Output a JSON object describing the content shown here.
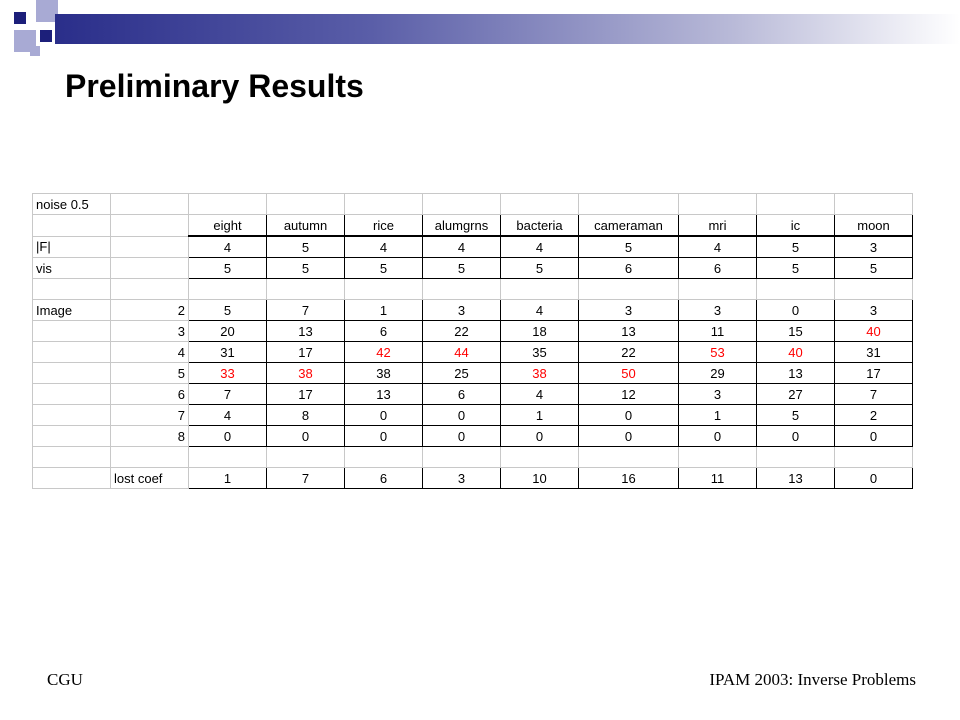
{
  "slide": {
    "title": "Preliminary Results",
    "footer_left": "CGU",
    "footer_right": "IPAM 2003: Inverse Problems"
  },
  "table": {
    "corner_label": "noise 0.5",
    "columns": [
      "eight",
      "autumn",
      "rice",
      "alumgrns",
      "bacteria",
      "cameraman",
      "mri",
      "ic",
      "moon"
    ],
    "rows": [
      {
        "label": "|F|",
        "sub": "",
        "values": [
          "4",
          "5",
          "4",
          "4",
          "4",
          "5",
          "4",
          "5",
          "3"
        ],
        "red": []
      },
      {
        "label": "vis",
        "sub": "",
        "values": [
          "5",
          "5",
          "5",
          "5",
          "5",
          "6",
          "6",
          "5",
          "5"
        ],
        "red": []
      },
      {
        "label": "Image",
        "sub": "2",
        "values": [
          "5",
          "7",
          "1",
          "3",
          "4",
          "3",
          "3",
          "0",
          "3"
        ],
        "red": []
      },
      {
        "label": "",
        "sub": "3",
        "values": [
          "20",
          "13",
          "6",
          "22",
          "18",
          "13",
          "11",
          "15",
          "40"
        ],
        "red": [
          8
        ]
      },
      {
        "label": "",
        "sub": "4",
        "values": [
          "31",
          "17",
          "42",
          "44",
          "35",
          "22",
          "53",
          "40",
          "31"
        ],
        "red": [
          2,
          3,
          6,
          7
        ]
      },
      {
        "label": "",
        "sub": "5",
        "values": [
          "33",
          "38",
          "38",
          "25",
          "38",
          "50",
          "29",
          "13",
          "17"
        ],
        "red": [
          0,
          1,
          4,
          5
        ]
      },
      {
        "label": "",
        "sub": "6",
        "values": [
          "7",
          "17",
          "13",
          "6",
          "4",
          "12",
          "3",
          "27",
          "7"
        ],
        "red": []
      },
      {
        "label": "",
        "sub": "7",
        "values": [
          "4",
          "8",
          "0",
          "0",
          "1",
          "0",
          "1",
          "5",
          "2"
        ],
        "red": []
      },
      {
        "label": "",
        "sub": "8",
        "values": [
          "0",
          "0",
          "0",
          "0",
          "0",
          "0",
          "0",
          "0",
          "0"
        ],
        "red": []
      },
      {
        "label": "",
        "sub": "lost coef",
        "values": [
          "1",
          "7",
          "6",
          "3",
          "10",
          "16",
          "11",
          "13",
          "0"
        ],
        "red": []
      }
    ]
  },
  "colors": {
    "accent_dark": "#1c1f7a",
    "accent_light": "#a8aad4",
    "highlight": "#ff0000"
  }
}
